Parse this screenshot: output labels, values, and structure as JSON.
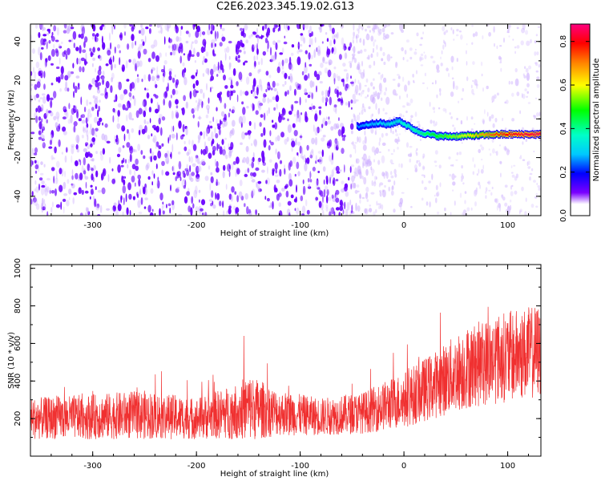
{
  "title": "C2E6.2023.345.19.02.G13",
  "chart_data": [
    {
      "type": "heatmap",
      "xlabel": "Height of straight line (km)",
      "ylabel": "Frequency (Hz)",
      "xlim": [
        -360,
        132
      ],
      "ylim": [
        -50,
        49
      ],
      "xticks": [
        -300,
        -200,
        -100,
        0,
        100
      ],
      "xtick_labels": [
        "-300",
        "-200",
        "-100",
        "0",
        "100"
      ],
      "yticks": [
        -40,
        -20,
        0,
        20,
        40
      ],
      "ytick_labels": [
        "-40",
        "-20",
        "0",
        "20",
        "40"
      ],
      "colorbar": {
        "label": "Normalized spectral amplitude",
        "range": [
          0,
          0.88
        ],
        "ticks": [
          0.0,
          0.2,
          0.4,
          0.6,
          0.8
        ],
        "tick_labels": [
          "0.0",
          "0.2",
          "0.4",
          "0.6",
          "0.8"
        ]
      },
      "signal_trace": {
        "x": [
          -45,
          -35,
          -25,
          -15,
          -5,
          5,
          15,
          25,
          35,
          50,
          70,
          90,
          110,
          132
        ],
        "y": [
          -4,
          -3,
          -2,
          -3,
          -1,
          -4,
          -7,
          -8,
          -9,
          -9,
          -8.5,
          -8,
          -8,
          -8
        ],
        "amplitude": [
          0.25,
          0.28,
          0.3,
          0.33,
          0.35,
          0.38,
          0.4,
          0.45,
          0.5,
          0.55,
          0.65,
          0.75,
          0.82,
          0.85
        ]
      },
      "noise_color": "#6a00ff"
    },
    {
      "type": "line",
      "xlabel": "Height of straight line (km)",
      "ylabel": "SNR (10 * v/v)",
      "xlim": [
        -360,
        132
      ],
      "ylim": [
        0,
        1020
      ],
      "xticks": [
        -300,
        -200,
        -100,
        0,
        100
      ],
      "xtick_labels": [
        "-300",
        "-200",
        "-100",
        "0",
        "100"
      ],
      "yticks": [
        200,
        400,
        600,
        800,
        1000
      ],
      "ytick_labels": [
        "200",
        "400",
        "600",
        "800",
        "1000"
      ],
      "series": [
        {
          "name": "SNR",
          "color": "#f03030",
          "envelope_x": [
            -360,
            -300,
            -250,
            -200,
            -160,
            -150,
            -120,
            -80,
            -40,
            0,
            30,
            60,
            90,
            132
          ],
          "envelope_mid": [
            200,
            210,
            220,
            200,
            240,
            260,
            230,
            210,
            230,
            300,
            380,
            470,
            520,
            560
          ],
          "envelope_spread": [
            110,
            120,
            130,
            110,
            150,
            180,
            120,
            100,
            110,
            150,
            180,
            220,
            240,
            250
          ]
        }
      ]
    }
  ]
}
